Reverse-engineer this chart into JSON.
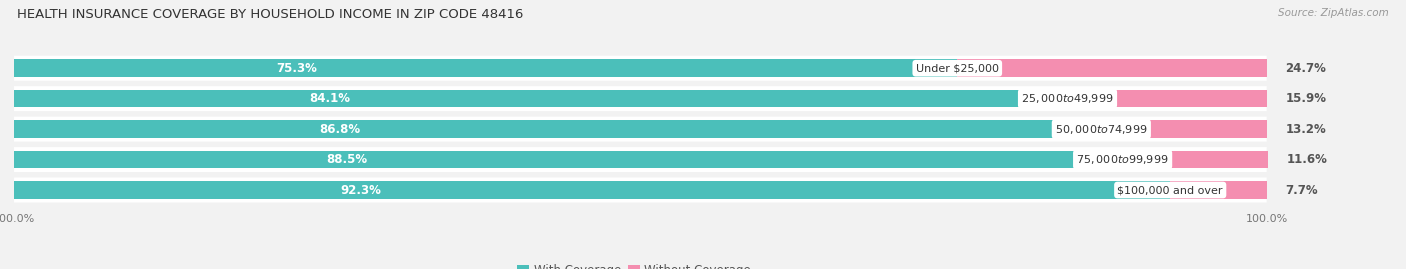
{
  "title": "HEALTH INSURANCE COVERAGE BY HOUSEHOLD INCOME IN ZIP CODE 48416",
  "source": "Source: ZipAtlas.com",
  "categories": [
    "Under $25,000",
    "$25,000 to $49,999",
    "$50,000 to $74,999",
    "$75,000 to $99,999",
    "$100,000 and over"
  ],
  "with_coverage": [
    75.3,
    84.1,
    86.8,
    88.5,
    92.3
  ],
  "without_coverage": [
    24.7,
    15.9,
    13.2,
    11.6,
    7.7
  ],
  "color_with": "#4BBFBA",
  "color_without": "#F48EB0",
  "bg_color": "#f2f2f2",
  "row_bg_color": "#ffffff",
  "title_fontsize": 9.5,
  "label_fontsize": 8.5,
  "pct_fontsize": 8.5,
  "cat_fontsize": 8.0,
  "tick_fontsize": 8,
  "source_fontsize": 7.5,
  "legend_fontsize": 8.5
}
